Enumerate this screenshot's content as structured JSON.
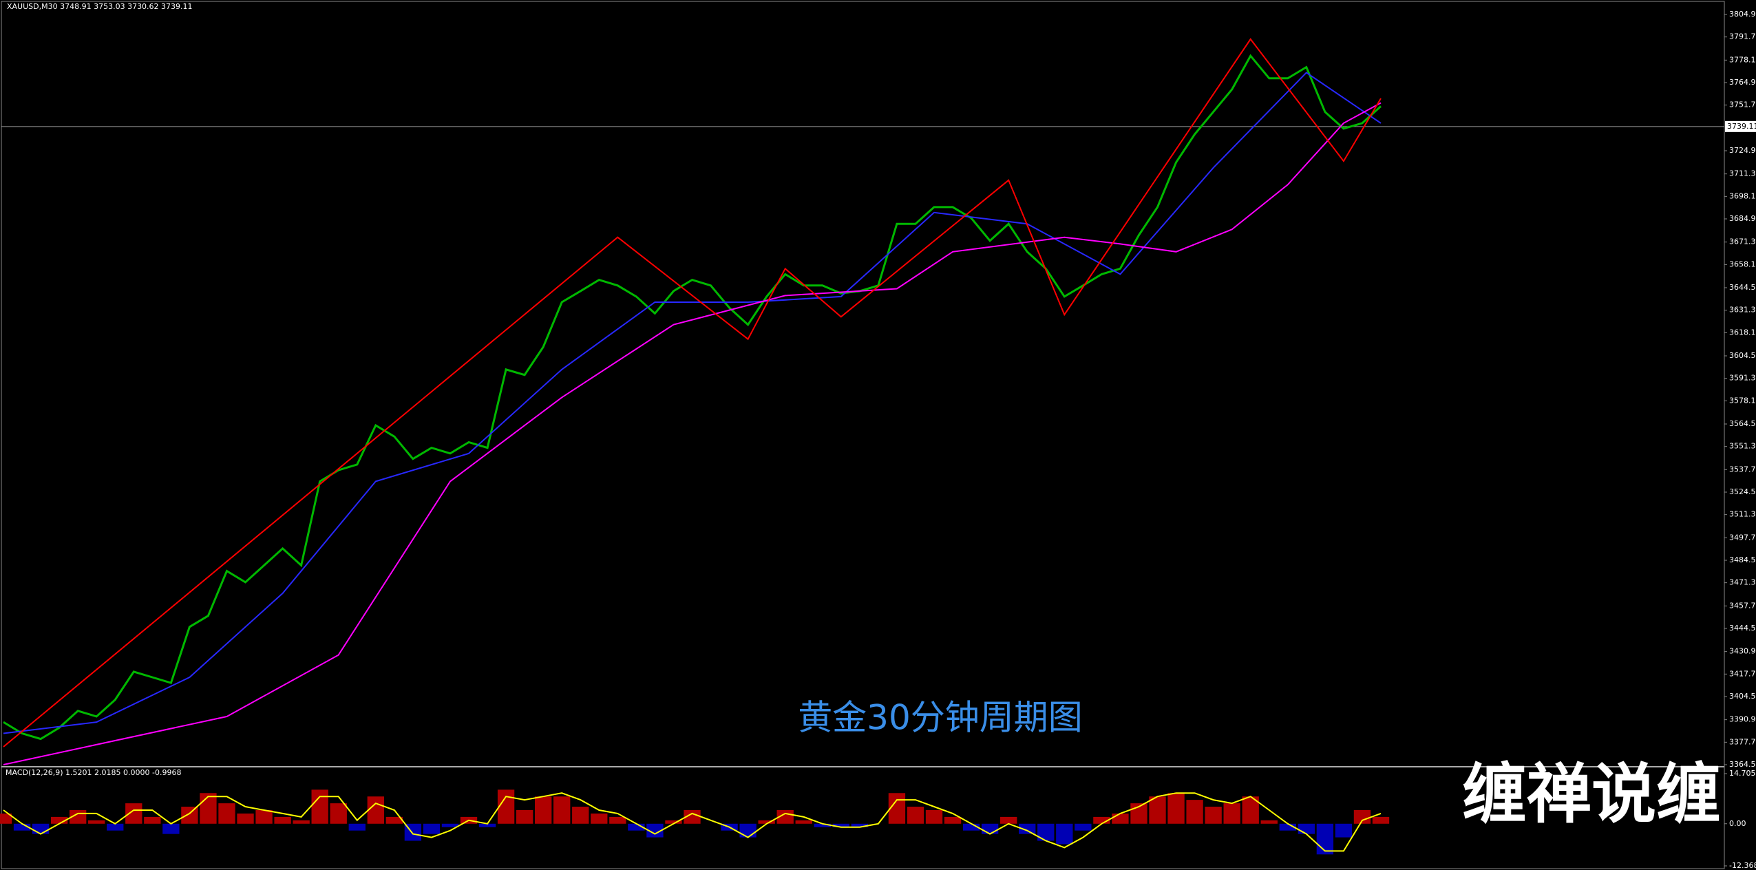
{
  "chart_data": [
    {
      "type": "line",
      "title": "XAUUSD,M30 3748.91 3753.03 3730.62 3739.11",
      "annotation": "黄金30分钟周期图",
      "current_price": 3739.11,
      "ylim": [
        3364.5,
        3804.9
      ],
      "yticks": [
        {
          "value": 3804.9,
          "label": "3804.90"
        },
        {
          "value": 3791.7,
          "label": "3791.70"
        },
        {
          "value": 3778.1,
          "label": "3778.10"
        },
        {
          "value": 3764.9,
          "label": "3764.90"
        },
        {
          "value": 3751.7,
          "label": "3751.70"
        },
        {
          "value": 3724.9,
          "label": "3724.90"
        },
        {
          "value": 3711.3,
          "label": "3711.30"
        },
        {
          "value": 3698.1,
          "label": "3698.10"
        },
        {
          "value": 3684.9,
          "label": "3684.90"
        },
        {
          "value": 3671.3,
          "label": "3671.30"
        },
        {
          "value": 3658.1,
          "label": "3658.10"
        },
        {
          "value": 3644.5,
          "label": "3644.50"
        },
        {
          "value": 3631.3,
          "label": "3631.30"
        },
        {
          "value": 3618.1,
          "label": "3618.10"
        },
        {
          "value": 3604.5,
          "label": "3604.50"
        },
        {
          "value": 3591.3,
          "label": "3591.30"
        },
        {
          "value": 3578.1,
          "label": "3578.10"
        },
        {
          "value": 3564.5,
          "label": "3564.50"
        },
        {
          "value": 3551.3,
          "label": "3551.30"
        },
        {
          "value": 3537.7,
          "label": "3537.70"
        },
        {
          "value": 3524.5,
          "label": "3524.50"
        },
        {
          "value": 3511.3,
          "label": "3511.30"
        },
        {
          "value": 3497.7,
          "label": "3497.70"
        },
        {
          "value": 3484.5,
          "label": "3484.50"
        },
        {
          "value": 3471.3,
          "label": "3471.30"
        },
        {
          "value": 3457.7,
          "label": "3457.70"
        },
        {
          "value": 3444.5,
          "label": "3444.50"
        },
        {
          "value": 3430.9,
          "label": "3430.90"
        },
        {
          "value": 3417.7,
          "label": "3417.70"
        },
        {
          "value": 3404.5,
          "label": "3404.50"
        },
        {
          "value": 3390.9,
          "label": "3390.90"
        },
        {
          "value": 3377.7,
          "label": "3377.70"
        },
        {
          "value": 3364.5,
          "label": "3364.50"
        }
      ],
      "grid": false,
      "series": [
        {
          "color": "#00b800",
          "values": [
            3389.5,
            3382.9,
            3379.6,
            3386.2,
            3396.1,
            3392.8,
            3402.6,
            3419.1,
            3415.8,
            3412.5,
            3445.4,
            3451.9,
            3478.2,
            3471.6,
            3481.5,
            3491.4,
            3481.5,
            3530.8,
            3537.4,
            3540.7,
            3563.7,
            3557.1,
            3544.0,
            3550.5,
            3547.2,
            3553.8,
            3550.5,
            3596.5,
            3593.3,
            3609.7,
            3636.0,
            3642.5,
            3649.1,
            3645.8,
            3639.3,
            3629.4,
            3642.5,
            3649.1,
            3645.8,
            3632.7,
            3622.8,
            3639.3,
            3652.4,
            3645.8,
            3645.8,
            3641.2,
            3642.5,
            3645.8,
            3682.0,
            3682.0,
            3691.8,
            3691.8,
            3685.3,
            3672.1,
            3682.0,
            3665.6,
            3655.7,
            3639.3,
            3645.8,
            3652.4,
            3655.7,
            3675.4,
            3691.8,
            3718.1,
            3734.6,
            3747.7,
            3760.9,
            3780.6,
            3767.4,
            3767.4,
            3774.0,
            3747.7,
            3737.9,
            3741.1,
            3751.0
          ]
        },
        {
          "color": "#2828ff",
          "x": [
            0,
            5,
            10,
            15,
            20,
            25,
            30,
            35,
            40,
            45,
            50,
            55,
            60,
            65,
            70,
            74
          ],
          "values": [
            3382.9,
            3389.5,
            3415.8,
            3465.1,
            3530.8,
            3547.2,
            3596.5,
            3636.0,
            3636.0,
            3639.3,
            3688.6,
            3682.0,
            3652.4,
            3714.9,
            3770.7,
            3741.1
          ]
        },
        {
          "color": "#ff00ff",
          "x": [
            0,
            12,
            18,
            24,
            30,
            36,
            42,
            48,
            51,
            57,
            60,
            63,
            66,
            69,
            72,
            74
          ],
          "values": [
            3364.5,
            3392.8,
            3428.9,
            3530.8,
            3580.1,
            3622.8,
            3639.9,
            3643.9,
            3665.6,
            3674.1,
            3670.2,
            3665.6,
            3678.7,
            3705.0,
            3741.1,
            3753.0
          ]
        },
        {
          "color": "#ff0000",
          "x": [
            0,
            33,
            40,
            42,
            45,
            54,
            57,
            67,
            72,
            74
          ],
          "values": [
            3375.0,
            3674.1,
            3614.3,
            3655.7,
            3627.4,
            3707.6,
            3628.7,
            3790.4,
            3718.8,
            3755.6
          ]
        }
      ]
    },
    {
      "type": "bar",
      "title": "MACD(12,26,9) 1.5201 2.0185 0.0000 -0.9968",
      "ylim": [
        -12.3687,
        14.7055
      ],
      "yticks": [
        14.7055,
        {
          "value": 0,
          "label": "0.00"
        },
        -12.3687
      ],
      "color_up": "#b00000",
      "color_down": "#0000b4",
      "values": [
        3,
        -2,
        -3,
        2,
        4,
        1,
        -2,
        6,
        2,
        -3,
        5,
        9,
        6,
        3,
        4,
        2,
        1,
        10,
        6,
        -2,
        8,
        2,
        -5,
        -3,
        -1,
        2,
        -1,
        10,
        4,
        8,
        8,
        5,
        3,
        2,
        -2,
        -4,
        1,
        4,
        0,
        -2,
        -4,
        1,
        4,
        1,
        -1,
        -1,
        -1,
        0,
        9,
        5,
        4,
        2,
        -2,
        -3,
        2,
        -3,
        -5,
        -6,
        -2,
        2,
        3,
        6,
        8,
        9,
        7,
        5,
        6,
        8,
        1,
        -2,
        -3,
        -9,
        -4,
        4,
        2
      ],
      "lines": [
        {
          "color": "#ffff00",
          "values": [
            4,
            0,
            -3,
            0,
            3,
            3,
            0,
            4,
            4,
            0,
            3,
            8,
            8,
            5,
            4,
            3,
            2,
            8,
            8,
            1,
            6,
            4,
            -3,
            -4,
            -2,
            1,
            0,
            8,
            7,
            8,
            9,
            7,
            4,
            3,
            0,
            -3,
            0,
            3,
            1,
            -1,
            -4,
            0,
            3,
            2,
            0,
            -1,
            -1,
            0,
            7,
            7,
            5,
            3,
            0,
            -3,
            0,
            -2,
            -5,
            -7,
            -4,
            0,
            3,
            5,
            8,
            9,
            9,
            7,
            6,
            8,
            4,
            0,
            -3,
            -8,
            -8,
            1,
            3
          ]
        }
      ]
    }
  ],
  "watermark": "缠禅说缠"
}
